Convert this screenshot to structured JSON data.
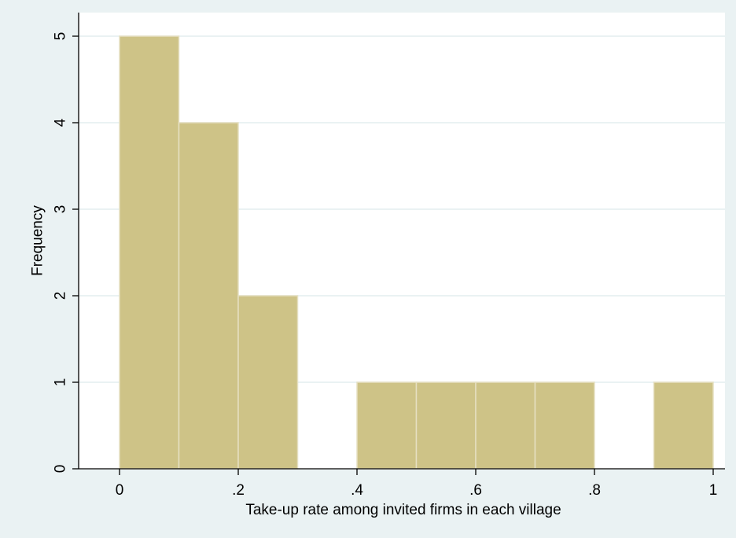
{
  "chart_data": {
    "type": "bar",
    "title": "",
    "xlabel": "Take-up rate among invited firms in each village",
    "ylabel": "Frequency",
    "xlim": [
      0,
      1
    ],
    "ylim": [
      0,
      5
    ],
    "grid": true,
    "bins": [
      {
        "x0": 0.0,
        "x1": 0.1,
        "value": 5
      },
      {
        "x0": 0.1,
        "x1": 0.2,
        "value": 4
      },
      {
        "x0": 0.2,
        "x1": 0.3,
        "value": 2
      },
      {
        "x0": 0.3,
        "x1": 0.4,
        "value": 0
      },
      {
        "x0": 0.4,
        "x1": 0.5,
        "value": 1
      },
      {
        "x0": 0.5,
        "x1": 0.6,
        "value": 1
      },
      {
        "x0": 0.6,
        "x1": 0.7,
        "value": 1
      },
      {
        "x0": 0.7,
        "x1": 0.8,
        "value": 1
      },
      {
        "x0": 0.8,
        "x1": 0.9,
        "value": 0
      },
      {
        "x0": 0.9,
        "x1": 1.0,
        "value": 1
      }
    ],
    "x_ticks": [
      {
        "value": 0,
        "label": "0"
      },
      {
        "value": 0.2,
        "label": ".2"
      },
      {
        "value": 0.4,
        "label": ".4"
      },
      {
        "value": 0.6,
        "label": ".6"
      },
      {
        "value": 0.8,
        "label": ".8"
      },
      {
        "value": 1,
        "label": "1"
      }
    ],
    "y_ticks": [
      {
        "value": 0,
        "label": "0"
      },
      {
        "value": 1,
        "label": "1"
      },
      {
        "value": 2,
        "label": "2"
      },
      {
        "value": 3,
        "label": "3"
      },
      {
        "value": 4,
        "label": "4"
      },
      {
        "value": 5,
        "label": "5"
      }
    ],
    "colors": {
      "outer_background": "#EAF2F3",
      "plot_background": "#FFFFFF",
      "bar_fill": "#CEC387",
      "bar_stroke": "#E6E0C2",
      "gridline": "#EAF2F3",
      "axis": "#000000"
    }
  }
}
